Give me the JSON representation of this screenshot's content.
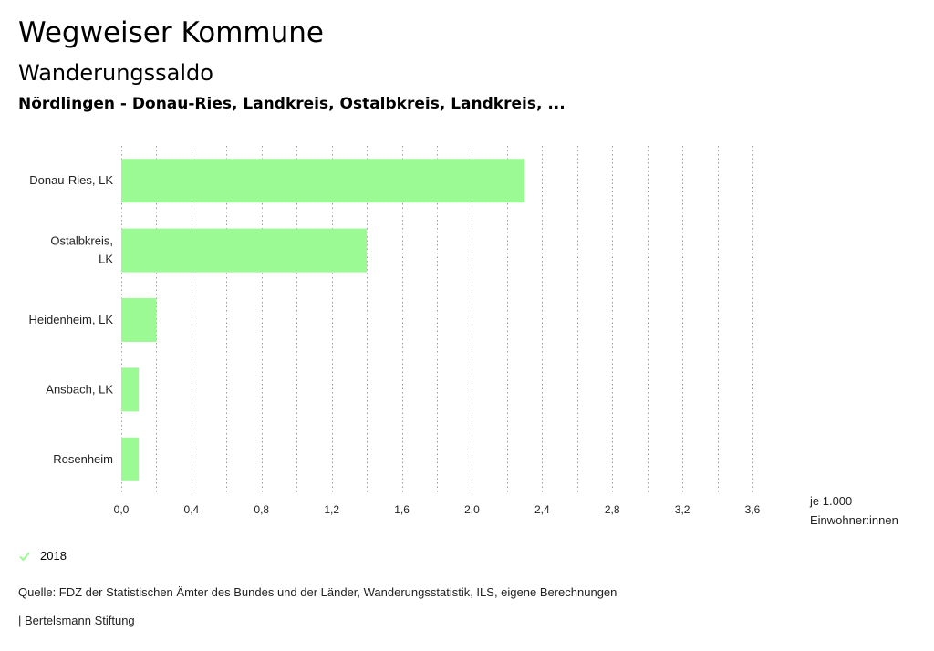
{
  "header": {
    "title": "Wegweiser Kommune",
    "subtitle": "Wanderungssaldo",
    "region": "Nördlingen - Donau-Ries, Landkreis, Ostalbkreis, Landkreis, ..."
  },
  "unit": {
    "line1": "je 1.000",
    "line2": "Einwohner:innen"
  },
  "legend": {
    "label": "2018",
    "color": "#9cfa94"
  },
  "footer": {
    "source": "Quelle: FDZ der Statistischen Ämter des Bundes und der Länder, Wanderungsstatistik, ILS, eigene Berechnungen",
    "brand": "| Bertelsmann Stiftung"
  },
  "chart_data": {
    "type": "bar",
    "orientation": "horizontal",
    "categories": [
      "Donau-Ries, LK",
      "Ostalbkreis, LK",
      "Heidenheim, LK",
      "Ansbach, LK",
      "Rosenheim"
    ],
    "category_lines": [
      [
        "Donau-Ries, LK"
      ],
      [
        "Ostalbkreis,",
        "LK"
      ],
      [
        "Heidenheim, LK"
      ],
      [
        "Ansbach, LK"
      ],
      [
        "Rosenheim"
      ]
    ],
    "series": [
      {
        "name": "2018",
        "values": [
          2.3,
          1.4,
          0.2,
          0.1,
          0.1
        ],
        "color": "#9cfa94"
      }
    ],
    "xlim": [
      0,
      3.6
    ],
    "xticks": [
      0,
      0.4,
      0.8,
      1.2,
      1.6,
      2.0,
      2.4,
      2.8,
      3.2,
      3.6
    ],
    "xtick_labels": [
      "0,0",
      "0,4",
      "0,8",
      "1,2",
      "1,6",
      "2,0",
      "2,4",
      "2,8",
      "3,2",
      "3,6"
    ],
    "grid": true
  }
}
